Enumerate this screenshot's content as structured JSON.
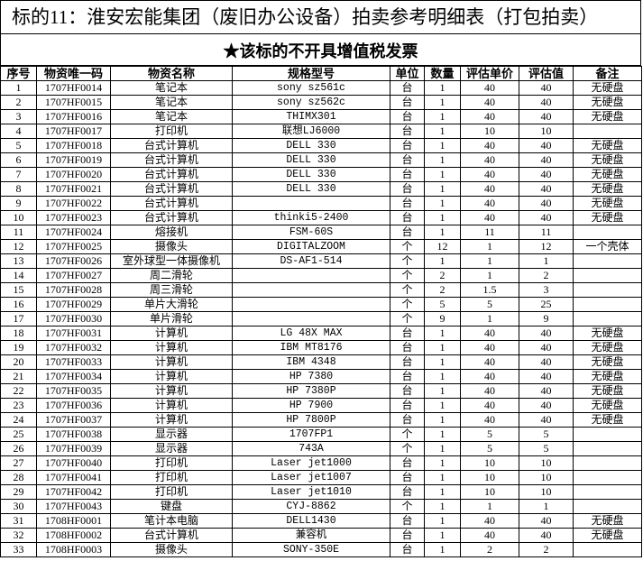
{
  "title": "标的11：淮安宏能集团（废旧办公设备）拍卖参考明细表（打包拍卖）",
  "subtitle": "★该标的不开具增值税发票",
  "headers": [
    "序号",
    "物资唯一码",
    "物资名称",
    "规格型号",
    "单位",
    "数量",
    "评估单价",
    "评估值",
    "备注"
  ],
  "rows": [
    [
      "1",
      "1707HF0014",
      "笔记本",
      "sony sz561c",
      "台",
      "1",
      "40",
      "40",
      "无硬盘"
    ],
    [
      "2",
      "1707HF0015",
      "笔记本",
      "sony sz562c",
      "台",
      "1",
      "40",
      "40",
      "无硬盘"
    ],
    [
      "3",
      "1707HF0016",
      "笔记本",
      "THIMX301",
      "台",
      "1",
      "40",
      "40",
      "无硬盘"
    ],
    [
      "4",
      "1707HF0017",
      "打印机",
      "联想LJ6000",
      "台",
      "1",
      "10",
      "10",
      ""
    ],
    [
      "5",
      "1707HF0018",
      "台式计算机",
      "DELL 330",
      "台",
      "1",
      "40",
      "40",
      "无硬盘"
    ],
    [
      "6",
      "1707HF0019",
      "台式计算机",
      "DELL 330",
      "台",
      "1",
      "40",
      "40",
      "无硬盘"
    ],
    [
      "7",
      "1707HF0020",
      "台式计算机",
      "DELL 330",
      "台",
      "1",
      "40",
      "40",
      "无硬盘"
    ],
    [
      "8",
      "1707HF0021",
      "台式计算机",
      "DELL 330",
      "台",
      "1",
      "40",
      "40",
      "无硬盘"
    ],
    [
      "9",
      "1707HF0022",
      "台式计算机",
      "",
      "台",
      "1",
      "40",
      "40",
      "无硬盘"
    ],
    [
      "10",
      "1707HF0023",
      "台式计算机",
      "thinki5-2400",
      "台",
      "1",
      "40",
      "40",
      "无硬盘"
    ],
    [
      "11",
      "1707HF0024",
      "熔接机",
      "FSM-60S",
      "台",
      "1",
      "11",
      "11",
      ""
    ],
    [
      "12",
      "1707HF0025",
      "摄像头",
      "DIGITALZOOM",
      "个",
      "12",
      "1",
      "12",
      "一个壳体"
    ],
    [
      "13",
      "1707HF0026",
      "室外球型一体摄像机",
      "DS-AF1-514",
      "个",
      "1",
      "1",
      "1",
      ""
    ],
    [
      "14",
      "1707HF0027",
      "周二滑轮",
      "",
      "个",
      "2",
      "1",
      "2",
      ""
    ],
    [
      "15",
      "1707HF0028",
      "周三滑轮",
      "",
      "个",
      "2",
      "1.5",
      "3",
      ""
    ],
    [
      "16",
      "1707HF0029",
      "单片大滑轮",
      "",
      "个",
      "5",
      "5",
      "25",
      ""
    ],
    [
      "17",
      "1707HF0030",
      "单片滑轮",
      "",
      "个",
      "9",
      "1",
      "9",
      ""
    ],
    [
      "18",
      "1707HF0031",
      "计算机",
      "LG 48X MAX",
      "台",
      "1",
      "40",
      "40",
      "无硬盘"
    ],
    [
      "19",
      "1707HF0032",
      "计算机",
      "IBM MT8176",
      "台",
      "1",
      "40",
      "40",
      "无硬盘"
    ],
    [
      "20",
      "1707HF0033",
      "计算机",
      "IBM 4348",
      "台",
      "1",
      "40",
      "40",
      "无硬盘"
    ],
    [
      "21",
      "1707HF0034",
      "计算机",
      "HP 7380",
      "台",
      "1",
      "40",
      "40",
      "无硬盘"
    ],
    [
      "22",
      "1707HF0035",
      "计算机",
      "HP 7380P",
      "台",
      "1",
      "40",
      "40",
      "无硬盘"
    ],
    [
      "23",
      "1707HF0036",
      "计算机",
      "HP 7900",
      "台",
      "1",
      "40",
      "40",
      "无硬盘"
    ],
    [
      "24",
      "1707HF0037",
      "计算机",
      "HP 7800P",
      "台",
      "1",
      "40",
      "40",
      "无硬盘"
    ],
    [
      "25",
      "1707HF0038",
      "显示器",
      "1707FP1",
      "个",
      "1",
      "5",
      "5",
      ""
    ],
    [
      "26",
      "1707HF0039",
      "显示器",
      "743A",
      "个",
      "1",
      "5",
      "5",
      ""
    ],
    [
      "27",
      "1707HF0040",
      "打印机",
      "Laser jet1000",
      "台",
      "1",
      "10",
      "10",
      ""
    ],
    [
      "28",
      "1707HF0041",
      "打印机",
      "Laser jet1007",
      "台",
      "1",
      "10",
      "10",
      ""
    ],
    [
      "29",
      "1707HF0042",
      "打印机",
      "Laser jet1010",
      "台",
      "1",
      "10",
      "10",
      ""
    ],
    [
      "30",
      "1707HF0043",
      "键盘",
      "CYJ-8862",
      "个",
      "1",
      "1",
      "1",
      ""
    ],
    [
      "31",
      "1708HF0001",
      "笔计本电脑",
      "DELL1430",
      "台",
      "1",
      "40",
      "40",
      "无硬盘"
    ],
    [
      "32",
      "1708HF0002",
      "台式计算机",
      "兼容机",
      "台",
      "1",
      "40",
      "40",
      "无硬盘"
    ],
    [
      "33",
      "1708HF0003",
      "摄像头",
      "SONY-350E",
      "台",
      "1",
      "2",
      "2",
      ""
    ]
  ]
}
